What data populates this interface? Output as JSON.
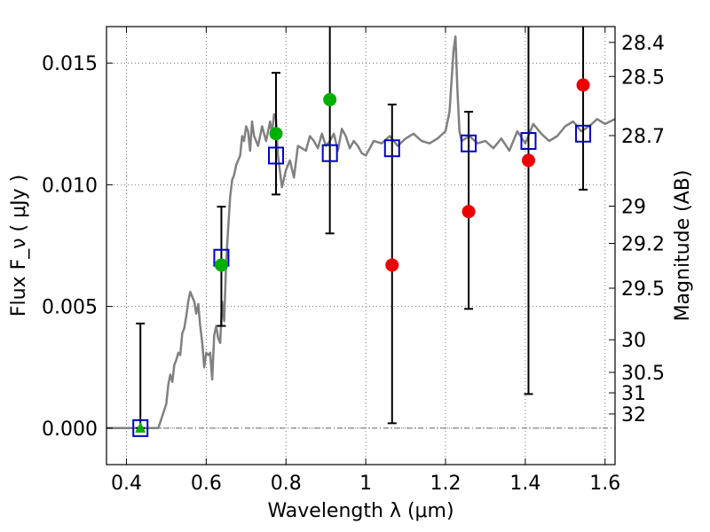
{
  "chart_data": {
    "type": "scatter",
    "xlabel": "Wavelength  λ (μm)",
    "ylabel": "Flux  F_ν  ( μJy )",
    "ylabel_right": "Magnitude (AB)",
    "xlim": [
      0.35,
      1.625
    ],
    "ylim": [
      -0.0015,
      0.0165
    ],
    "grid": true,
    "x_ticks": [
      0.4,
      0.6,
      0.8,
      1.0,
      1.2,
      1.4,
      1.6
    ],
    "x_tick_labels": [
      "0.4",
      "0.6",
      "0.8",
      "1",
      "1.2",
      "1.4",
      "1.6"
    ],
    "y_ticks": [
      0.0,
      0.005,
      0.01,
      0.015
    ],
    "y_tick_labels": [
      "0.000",
      "0.005",
      "0.010",
      "0.015"
    ],
    "mag_ticks": [
      {
        "label": "28.4",
        "flux": 0.01585
      },
      {
        "label": "28.5",
        "flux": 0.01445
      },
      {
        "label": "28.7",
        "flux": 0.01202
      },
      {
        "label": "29",
        "flux": 0.00912
      },
      {
        "label": "29.2",
        "flux": 0.00759
      },
      {
        "label": "29.5",
        "flux": 0.00575
      },
      {
        "label": "30",
        "flux": 0.00363
      },
      {
        "label": "30.5",
        "flux": 0.00229
      },
      {
        "label": "31",
        "flux": 0.00145
      },
      {
        "label": "32",
        "flux": 0.00058
      }
    ],
    "series": [
      {
        "kind": "model-spectrum",
        "color": "#808080",
        "x": [
          0.35,
          0.44,
          0.46,
          0.48,
          0.49,
          0.5,
          0.505,
          0.51,
          0.515,
          0.52,
          0.525,
          0.53,
          0.535,
          0.54,
          0.545,
          0.55,
          0.555,
          0.56,
          0.565,
          0.57,
          0.575,
          0.58,
          0.585,
          0.59,
          0.595,
          0.6,
          0.605,
          0.61,
          0.615,
          0.62,
          0.625,
          0.63,
          0.635,
          0.64,
          0.645,
          0.65,
          0.655,
          0.66,
          0.665,
          0.67,
          0.675,
          0.68,
          0.685,
          0.69,
          0.695,
          0.7,
          0.705,
          0.71,
          0.715,
          0.72,
          0.73,
          0.74,
          0.75,
          0.76,
          0.765,
          0.77,
          0.775,
          0.78,
          0.79,
          0.8,
          0.81,
          0.82,
          0.83,
          0.84,
          0.85,
          0.86,
          0.87,
          0.88,
          0.89,
          0.9,
          0.91,
          0.92,
          0.93,
          0.94,
          0.95,
          0.96,
          0.97,
          0.98,
          0.99,
          1.0,
          1.02,
          1.04,
          1.06,
          1.08,
          1.1,
          1.12,
          1.14,
          1.16,
          1.18,
          1.2,
          1.21,
          1.22,
          1.225,
          1.23,
          1.235,
          1.24,
          1.26,
          1.28,
          1.3,
          1.32,
          1.34,
          1.36,
          1.38,
          1.4,
          1.42,
          1.44,
          1.46,
          1.48,
          1.5,
          1.52,
          1.54,
          1.56,
          1.58,
          1.6,
          1.625
        ],
        "y": [
          0.0,
          0.0,
          0.0,
          0.0,
          0.0005,
          0.001,
          0.0018,
          0.0022,
          0.0019,
          0.0026,
          0.0028,
          0.0031,
          0.003,
          0.0039,
          0.0041,
          0.0046,
          0.0052,
          0.0056,
          0.0054,
          0.0052,
          0.0047,
          0.0051,
          0.0042,
          0.0035,
          0.0025,
          0.0031,
          0.003,
          0.0031,
          0.002,
          0.0038,
          0.0042,
          0.0037,
          0.0035,
          0.0052,
          0.0044,
          0.0068,
          0.0082,
          0.0095,
          0.0102,
          0.0104,
          0.0108,
          0.011,
          0.0112,
          0.012,
          0.0118,
          0.0124,
          0.0122,
          0.0114,
          0.0126,
          0.012,
          0.0116,
          0.0124,
          0.0118,
          0.0126,
          0.0121,
          0.0129,
          0.0127,
          0.0112,
          0.0099,
          0.0106,
          0.011,
          0.0103,
          0.0116,
          0.0115,
          0.0114,
          0.012,
          0.0118,
          0.0115,
          0.0121,
          0.0116,
          0.0118,
          0.0121,
          0.0114,
          0.0123,
          0.012,
          0.0115,
          0.0118,
          0.0116,
          0.0113,
          0.0112,
          0.0118,
          0.0117,
          0.012,
          0.0116,
          0.0119,
          0.0121,
          0.0118,
          0.0117,
          0.0119,
          0.0122,
          0.013,
          0.0155,
          0.0161,
          0.0138,
          0.0122,
          0.0118,
          0.012,
          0.0117,
          0.0118,
          0.0115,
          0.0119,
          0.0114,
          0.0122,
          0.0117,
          0.0125,
          0.0121,
          0.0118,
          0.012,
          0.0124,
          0.0126,
          0.0122,
          0.0124,
          0.0127,
          0.0125,
          0.0127
        ]
      },
      {
        "kind": "error-bars",
        "color": "#000000",
        "points": [
          {
            "x": 0.435,
            "low": 0.0,
            "high": 0.0043
          },
          {
            "x": 0.638,
            "low": 0.0042,
            "high": 0.0091
          },
          {
            "x": 0.775,
            "low": 0.0096,
            "high": 0.0146
          },
          {
            "x": 0.91,
            "low": 0.008,
            "high": 0.0165
          },
          {
            "x": 1.066,
            "low": 0.0002,
            "high": 0.0133
          },
          {
            "x": 1.258,
            "low": 0.0049,
            "high": 0.013
          },
          {
            "x": 1.408,
            "low": 0.0014,
            "high": 0.0165
          },
          {
            "x": 1.545,
            "low": 0.0098,
            "high": 0.0165
          }
        ]
      },
      {
        "kind": "blue-squares",
        "color": "#0000cc",
        "marker": "square",
        "points": [
          {
            "x": 0.435,
            "y": 0.0
          },
          {
            "x": 0.638,
            "y": 0.007
          },
          {
            "x": 0.775,
            "y": 0.0112
          },
          {
            "x": 0.91,
            "y": 0.0113
          },
          {
            "x": 1.066,
            "y": 0.0115
          },
          {
            "x": 1.258,
            "y": 0.0117
          },
          {
            "x": 1.408,
            "y": 0.0118
          },
          {
            "x": 1.545,
            "y": 0.0121
          }
        ]
      },
      {
        "kind": "green-circles",
        "color": "#00b000",
        "marker": "circle",
        "points": [
          {
            "x": 0.638,
            "y": 0.0067
          },
          {
            "x": 0.775,
            "y": 0.0121
          },
          {
            "x": 0.91,
            "y": 0.0135
          }
        ]
      },
      {
        "kind": "green-triangles",
        "color": "#00b000",
        "marker": "triangle",
        "points": [
          {
            "x": 0.435,
            "y": 0.0
          }
        ]
      },
      {
        "kind": "red-circles",
        "color": "#ee0000",
        "marker": "circle",
        "points": [
          {
            "x": 1.066,
            "y": 0.0067
          },
          {
            "x": 1.258,
            "y": 0.0089
          },
          {
            "x": 1.408,
            "y": 0.011
          },
          {
            "x": 1.545,
            "y": 0.0141
          }
        ]
      }
    ]
  }
}
